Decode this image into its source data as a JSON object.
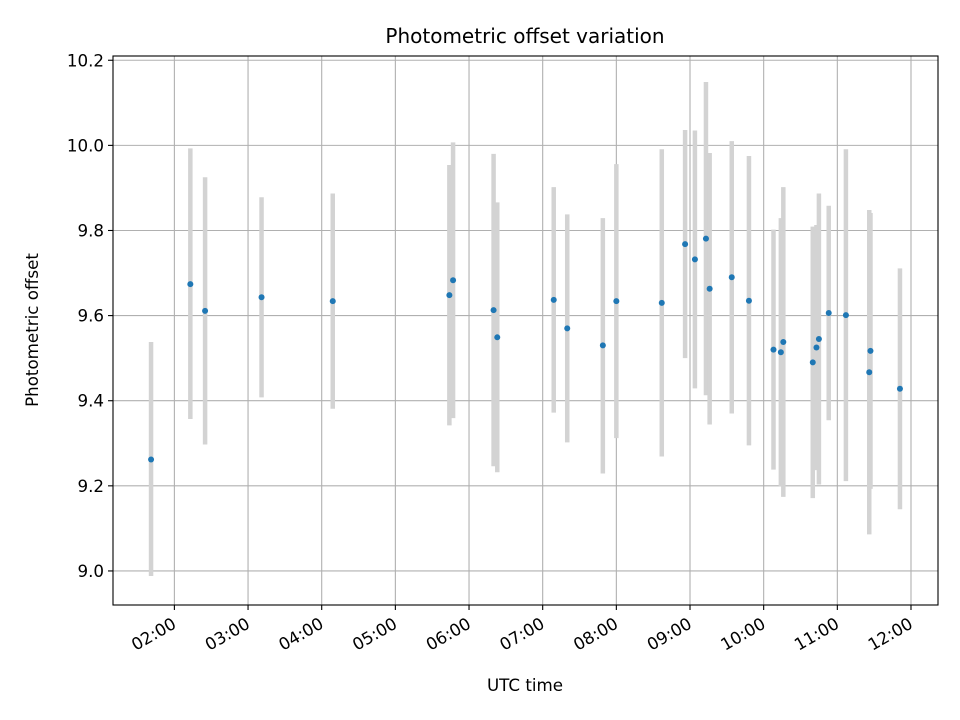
{
  "chart_data": {
    "type": "scatter",
    "title": "Photometric offset variation",
    "xlabel": "UTC time",
    "ylabel": "Photometric offset",
    "ylim": [
      8.92,
      10.21
    ],
    "xlim": [
      "01:10",
      "12:22"
    ],
    "x_ticks": [
      "02:00",
      "03:00",
      "04:00",
      "05:00",
      "06:00",
      "07:00",
      "08:00",
      "09:00",
      "10:00",
      "11:00",
      "12:00"
    ],
    "y_ticks": [
      "9.0",
      "9.2",
      "9.4",
      "9.6",
      "9.8",
      "10.0",
      "10.2"
    ],
    "grid": true,
    "colors": {
      "marker": "#1f77b4",
      "errorbar": "#d3d3d3",
      "grid": "#b0b0b0"
    },
    "series": [
      {
        "points": [
          {
            "x": "01:41",
            "y": 9.262,
            "ylo": 8.988,
            "yhi": 9.538
          },
          {
            "x": "02:13",
            "y": 9.674,
            "ylo": 9.357,
            "yhi": 9.993
          },
          {
            "x": "02:25",
            "y": 9.611,
            "ylo": 9.297,
            "yhi": 9.925
          },
          {
            "x": "03:11",
            "y": 9.643,
            "ylo": 9.408,
            "yhi": 9.878
          },
          {
            "x": "04:09",
            "y": 9.634,
            "ylo": 9.381,
            "yhi": 9.887
          },
          {
            "x": "05:44",
            "y": 9.648,
            "ylo": 9.342,
            "yhi": 9.954
          },
          {
            "x": "05:47",
            "y": 9.683,
            "ylo": 9.359,
            "yhi": 10.007
          },
          {
            "x": "06:20",
            "y": 9.613,
            "ylo": 9.246,
            "yhi": 9.98
          },
          {
            "x": "06:23",
            "y": 9.549,
            "ylo": 9.232,
            "yhi": 9.866
          },
          {
            "x": "07:09",
            "y": 9.637,
            "ylo": 9.372,
            "yhi": 9.902
          },
          {
            "x": "07:20",
            "y": 9.57,
            "ylo": 9.302,
            "yhi": 9.838
          },
          {
            "x": "07:49",
            "y": 9.53,
            "ylo": 9.229,
            "yhi": 9.829
          },
          {
            "x": "08:00",
            "y": 9.634,
            "ylo": 9.312,
            "yhi": 9.956
          },
          {
            "x": "08:37",
            "y": 9.63,
            "ylo": 9.269,
            "yhi": 9.991
          },
          {
            "x": "08:56",
            "y": 9.768,
            "ylo": 9.5,
            "yhi": 10.036
          },
          {
            "x": "09:04",
            "y": 9.732,
            "ylo": 9.429,
            "yhi": 10.035
          },
          {
            "x": "09:13",
            "y": 9.781,
            "ylo": 9.413,
            "yhi": 10.149
          },
          {
            "x": "09:16",
            "y": 9.663,
            "ylo": 9.344,
            "yhi": 9.982
          },
          {
            "x": "09:34",
            "y": 9.69,
            "ylo": 9.37,
            "yhi": 10.01
          },
          {
            "x": "09:48",
            "y": 9.635,
            "ylo": 9.295,
            "yhi": 9.975
          },
          {
            "x": "10:08",
            "y": 9.52,
            "ylo": 9.238,
            "yhi": 9.802
          },
          {
            "x": "10:14",
            "y": 9.514,
            "ylo": 9.199,
            "yhi": 9.829
          },
          {
            "x": "10:16",
            "y": 9.538,
            "ylo": 9.174,
            "yhi": 9.902
          },
          {
            "x": "10:40",
            "y": 9.49,
            "ylo": 9.171,
            "yhi": 9.809
          },
          {
            "x": "10:43",
            "y": 9.525,
            "ylo": 9.237,
            "yhi": 9.813
          },
          {
            "x": "10:45",
            "y": 9.545,
            "ylo": 9.203,
            "yhi": 9.887
          },
          {
            "x": "10:53",
            "y": 9.606,
            "ylo": 9.354,
            "yhi": 9.858
          },
          {
            "x": "11:07",
            "y": 9.601,
            "ylo": 9.211,
            "yhi": 9.991
          },
          {
            "x": "11:26",
            "y": 9.467,
            "ylo": 9.086,
            "yhi": 9.848
          },
          {
            "x": "11:27",
            "y": 9.517,
            "ylo": 9.193,
            "yhi": 9.841
          },
          {
            "x": "11:51",
            "y": 9.428,
            "ylo": 9.145,
            "yhi": 9.711
          }
        ]
      }
    ]
  }
}
